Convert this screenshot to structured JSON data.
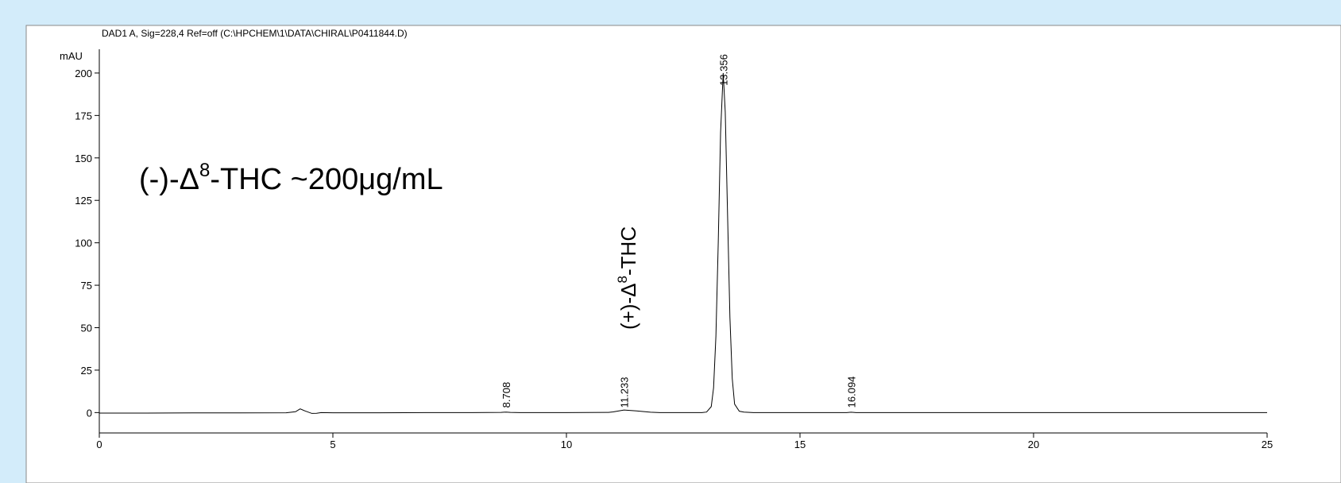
{
  "chart_data": {
    "type": "line",
    "title": "DAD1 A, Sig=228,4 Ref=off (C:\\HPCHEM\\1\\DATA\\CHIRAL\\P0411844.D)",
    "y_label": "mAU",
    "annotation": {
      "text": "(-)-Δ",
      "sup": "8",
      "rest": "-THC  ~200μg/mL"
    },
    "peak_annotation": {
      "text": "(+)-Δ",
      "sup": "8",
      "rest": "-THC"
    },
    "peaks": [
      8.708,
      11.233,
      13.356,
      16.094
    ],
    "xlim": [
      0,
      25
    ],
    "ylim": [
      -12,
      214
    ],
    "xticks": [
      0,
      5,
      10,
      15,
      20,
      25
    ],
    "yticks": [
      0,
      25,
      50,
      75,
      100,
      125,
      150,
      175,
      200
    ],
    "grid": false,
    "color": "#000000",
    "x": [
      0,
      1,
      2,
      3,
      4,
      4.2,
      4.3,
      4.4,
      4.55,
      4.65,
      4.75,
      5,
      6,
      7,
      8,
      8.6,
      8.708,
      8.8,
      9,
      10,
      10.9,
      11.0,
      11.233,
      11.5,
      11.8,
      12,
      12.5,
      12.9,
      13.0,
      13.1,
      13.15,
      13.2,
      13.25,
      13.3,
      13.356,
      13.4,
      13.45,
      13.5,
      13.55,
      13.6,
      13.7,
      13.8,
      14,
      15,
      16,
      16.094,
      16.2,
      17,
      18,
      19,
      20,
      21,
      22,
      23,
      24,
      25
    ],
    "values": [
      -0.3,
      -0.3,
      -0.2,
      -0.2,
      -0.1,
      0.5,
      2.2,
      1.0,
      -0.5,
      -0.4,
      0,
      -0.1,
      -0.1,
      0,
      0,
      0.1,
      0.3,
      0.1,
      0,
      0,
      0.1,
      0.4,
      1.5,
      1.0,
      0.2,
      0,
      0,
      0,
      0.3,
      3.5,
      14.6,
      45,
      100,
      165,
      200,
      177,
      116,
      56,
      20,
      5,
      0.8,
      0.3,
      0,
      0,
      0,
      0.2,
      0,
      0,
      0,
      0,
      0,
      0,
      0,
      0,
      0,
      0
    ]
  }
}
